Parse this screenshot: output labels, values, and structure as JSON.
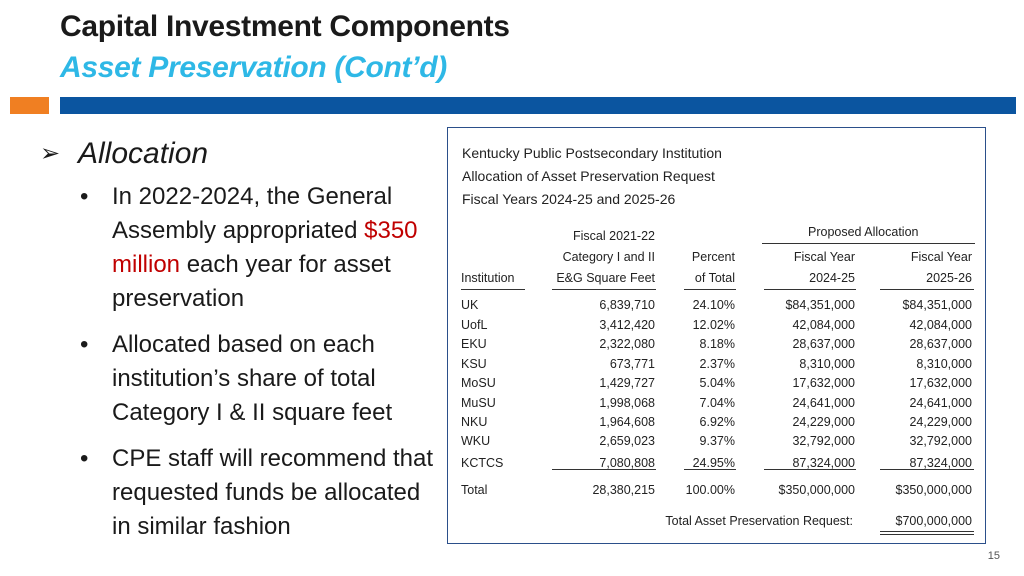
{
  "slide": {
    "title": "Capital Investment Components",
    "subtitle": "Asset Preservation (Cont’d)",
    "page_number": "15"
  },
  "left": {
    "heading": "Allocation",
    "arrow": "➢",
    "bullet": "•",
    "b1_pre": "In 2022-2024, the General Assembly appropriated",
    "b1_red": "$350 million",
    "b1_post": "each year for asset preservation",
    "b2": "Allocated based on each institution’s share of total Category I & II square feet",
    "b3": "CPE staff will recommend that requested funds be allocated in similar fashion"
  },
  "table": {
    "title1": "Kentucky Public Postsecondary Institution",
    "title2": "Allocation of Asset Preservation Request",
    "title3": "Fiscal Years 2024-25 and 2025-26",
    "proposed_header": "Proposed Allocation",
    "h_fiscal2122": "Fiscal 2021-22",
    "h_category": "Category I and II",
    "h_percent": "Percent",
    "h_fy1": "Fiscal Year",
    "h_fy2": "Fiscal Year",
    "h_institution": "Institution",
    "h_eg": "E&G Square Feet",
    "h_oftotal": "of Total",
    "h_2425": "2024-25",
    "h_2526": "2025-26",
    "rows": [
      {
        "inst": "UK",
        "sqft": "6,839,710",
        "pct": "24.10%",
        "fy1": "$84,351,000",
        "fy2": "$84,351,000"
      },
      {
        "inst": "UofL",
        "sqft": "3,412,420",
        "pct": "12.02%",
        "fy1": "42,084,000",
        "fy2": "42,084,000"
      },
      {
        "inst": "EKU",
        "sqft": "2,322,080",
        "pct": "8.18%",
        "fy1": "28,637,000",
        "fy2": "28,637,000"
      },
      {
        "inst": "KSU",
        "sqft": "673,771",
        "pct": "2.37%",
        "fy1": "8,310,000",
        "fy2": "8,310,000"
      },
      {
        "inst": "MoSU",
        "sqft": "1,429,727",
        "pct": "5.04%",
        "fy1": "17,632,000",
        "fy2": "17,632,000"
      },
      {
        "inst": "MuSU",
        "sqft": "1,998,068",
        "pct": "7.04%",
        "fy1": "24,641,000",
        "fy2": "24,641,000"
      },
      {
        "inst": "NKU",
        "sqft": "1,964,608",
        "pct": "6.92%",
        "fy1": "24,229,000",
        "fy2": "24,229,000"
      },
      {
        "inst": "WKU",
        "sqft": "2,659,023",
        "pct": "9.37%",
        "fy1": "32,792,000",
        "fy2": "32,792,000"
      },
      {
        "inst": "KCTCS",
        "sqft": "7,080,808",
        "pct": "24.95%",
        "fy1": "87,324,000",
        "fy2": "87,324,000"
      }
    ],
    "total": {
      "inst": "Total",
      "sqft": "28,380,215",
      "pct": "100.00%",
      "fy1": "$350,000,000",
      "fy2": "$350,000,000"
    },
    "request_label": "Total Asset Preservation Request:",
    "request_value": "$700,000,000"
  }
}
